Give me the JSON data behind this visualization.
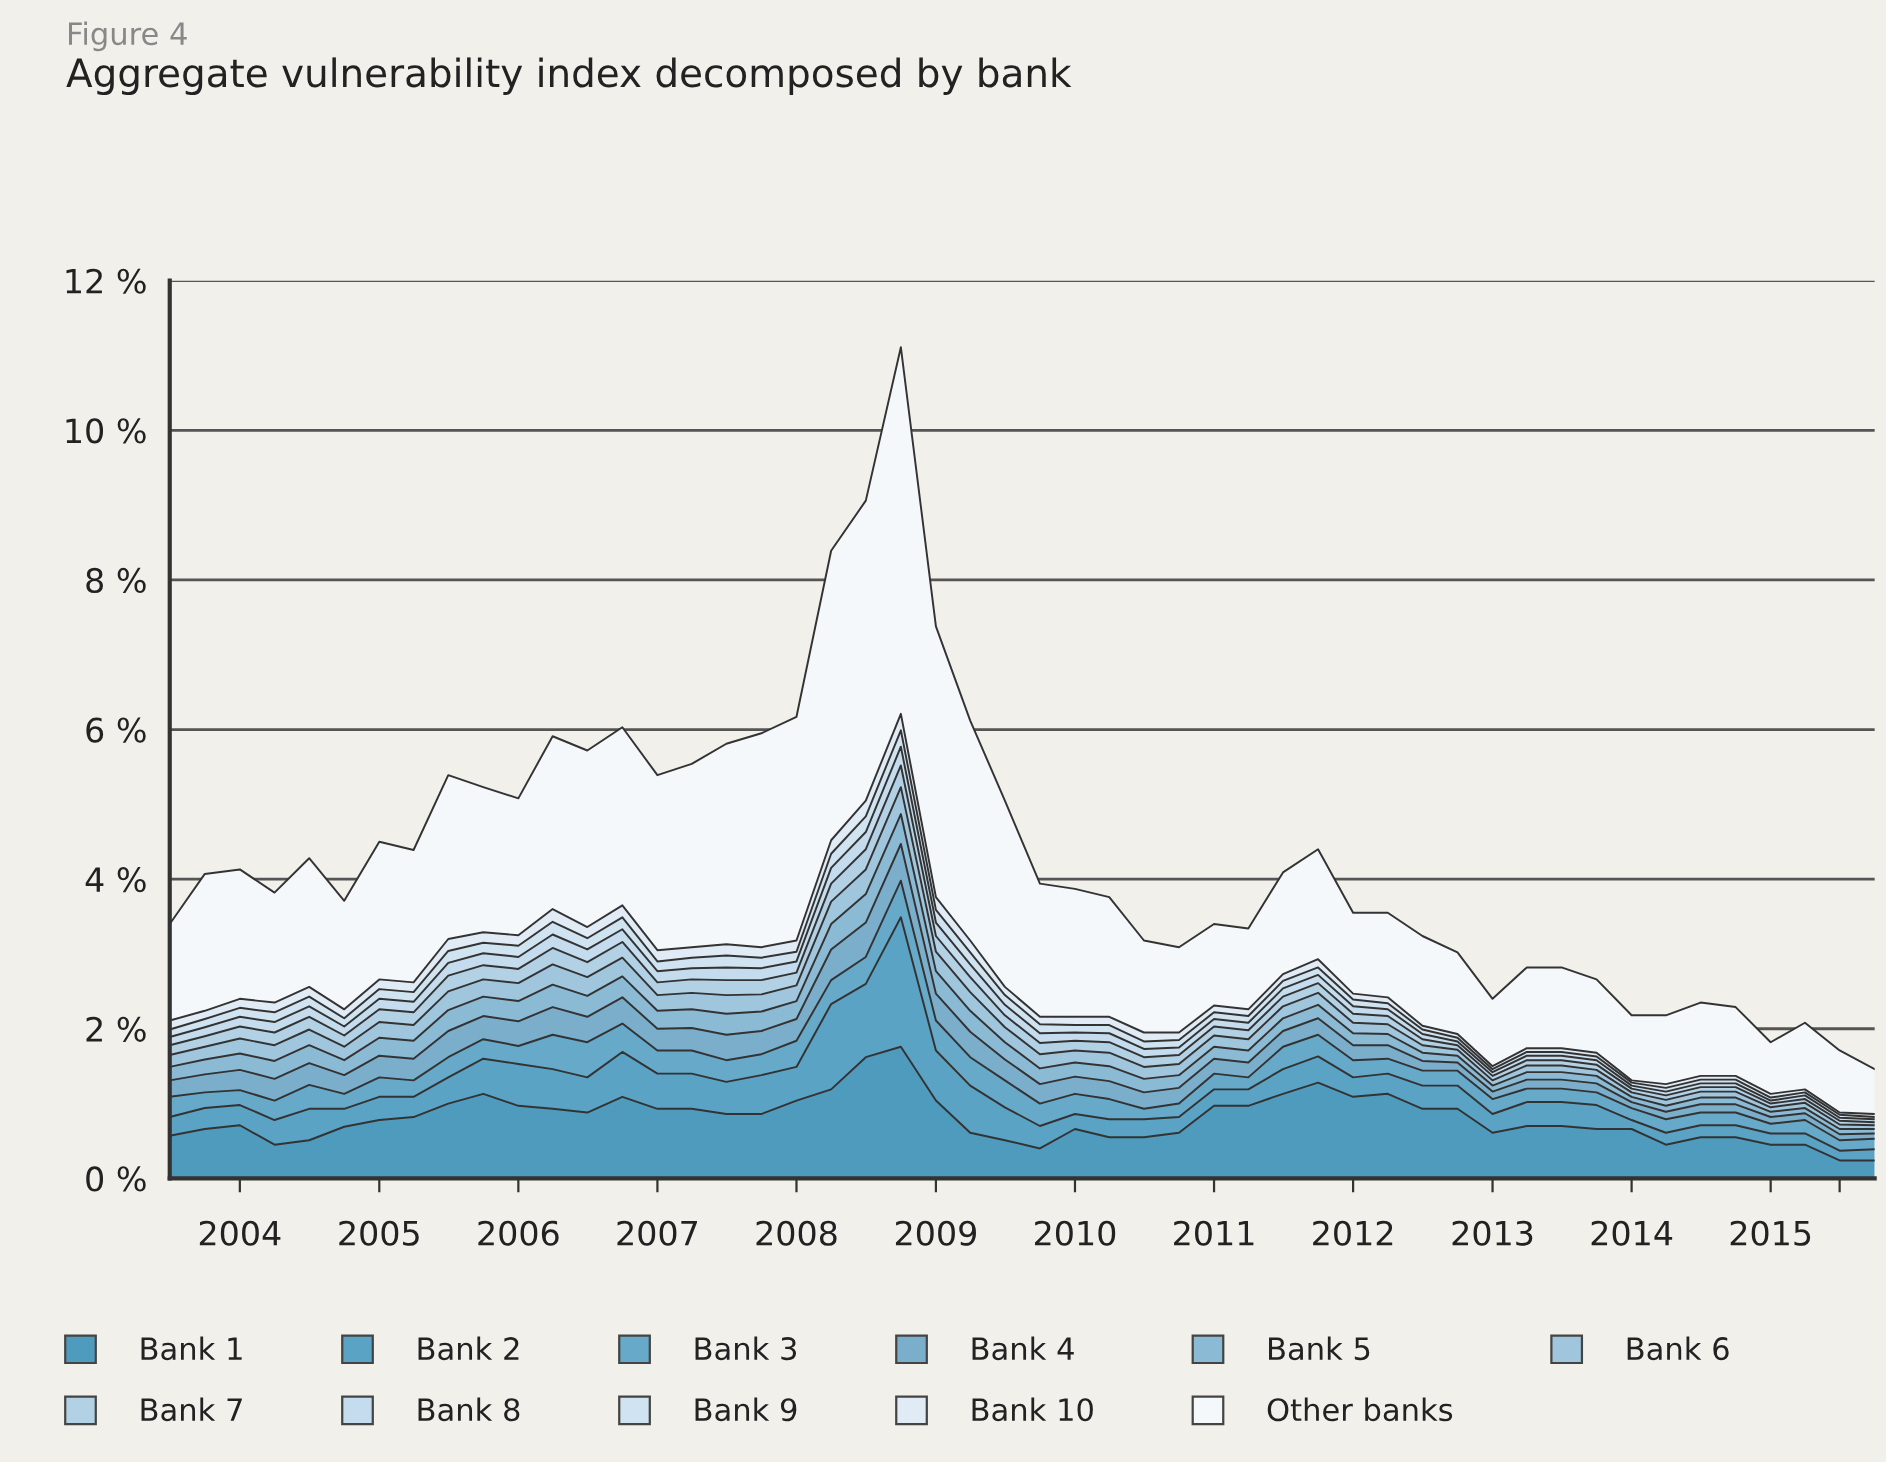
{
  "chart_data": {
    "type": "area",
    "stacked": true,
    "title": "Aggregate vulnerability index decomposed by bank",
    "annotations": [
      "Figure 4"
    ],
    "x": [
      "2003-07-01",
      "2003-10-01",
      "2004-01-01",
      "2004-04-01",
      "2004-07-01",
      "2004-10-01",
      "2005-01-01",
      "2005-04-01",
      "2005-07-01",
      "2005-10-01",
      "2006-01-01",
      "2006-04-01",
      "2006-07-01",
      "2006-10-01",
      "2007-01-01",
      "2007-04-01",
      "2007-07-01",
      "2007-10-01",
      "2008-01-01",
      "2008-04-01",
      "2008-07-01",
      "2008-10-01",
      "2009-01-01",
      "2009-04-01",
      "2009-07-01",
      "2009-10-01",
      "2010-01-01",
      "2010-04-01",
      "2010-07-01",
      "2010-10-01",
      "2011-01-01",
      "2011-04-01",
      "2011-07-01",
      "2011-10-01",
      "2012-01-01",
      "2012-04-01",
      "2012-07-01",
      "2012-10-01",
      "2013-01-01",
      "2013-04-01",
      "2013-07-01",
      "2013-10-01",
      "2014-01-01",
      "2014-04-01",
      "2014-07-01",
      "2014-10-01",
      "2015-01-01",
      "2015-04-01",
      "2015-07-01",
      "2015-10-01"
    ],
    "series": [
      {
        "name": "Bank 1",
        "color": "#4f9bbd",
        "values": [
          0.57,
          0.66,
          0.71,
          0.45,
          0.51,
          0.69,
          0.78,
          0.82,
          1.0,
          1.13,
          0.97,
          0.93,
          0.88,
          1.09,
          0.93,
          0.93,
          0.86,
          0.86,
          1.04,
          1.19,
          1.62,
          1.76,
          1.04,
          0.61,
          0.51,
          0.4,
          0.66,
          0.55,
          0.55,
          0.61,
          0.97,
          0.97,
          1.13,
          1.28,
          1.09,
          1.13,
          0.93,
          0.93,
          0.61,
          0.7,
          0.7,
          0.66,
          0.66,
          0.45,
          0.55,
          0.55,
          0.45,
          0.45,
          0.24,
          0.24
        ]
      },
      {
        "name": "Bank 2",
        "color": "#5aa3c4",
        "values": [
          0.25,
          0.28,
          0.27,
          0.33,
          0.42,
          0.24,
          0.31,
          0.27,
          0.35,
          0.47,
          0.56,
          0.53,
          0.47,
          0.6,
          0.47,
          0.47,
          0.43,
          0.52,
          0.45,
          1.14,
          0.98,
          1.73,
          0.67,
          0.63,
          0.44,
          0.3,
          0.2,
          0.24,
          0.24,
          0.21,
          0.22,
          0.22,
          0.33,
          0.35,
          0.26,
          0.27,
          0.31,
          0.31,
          0.25,
          0.32,
          0.32,
          0.32,
          0.12,
          0.16,
          0.16,
          0.16,
          0.15,
          0.15,
          0.13,
          0.15
        ]
      },
      {
        "name": "Bank 3",
        "color": "#66a9c9",
        "values": [
          0.27,
          0.21,
          0.2,
          0.26,
          0.32,
          0.2,
          0.26,
          0.22,
          0.27,
          0.26,
          0.24,
          0.46,
          0.47,
          0.38,
          0.31,
          0.31,
          0.29,
          0.28,
          0.35,
          0.32,
          0.36,
          0.49,
          0.4,
          0.38,
          0.36,
          0.3,
          0.27,
          0.27,
          0.14,
          0.18,
          0.21,
          0.16,
          0.3,
          0.29,
          0.23,
          0.2,
          0.2,
          0.2,
          0.2,
          0.18,
          0.18,
          0.17,
          0.16,
          0.18,
          0.17,
          0.17,
          0.13,
          0.18,
          0.14,
          0.14
        ]
      },
      {
        "name": "Bank 4",
        "color": "#7aaecb",
        "values": [
          0.22,
          0.24,
          0.27,
          0.29,
          0.29,
          0.25,
          0.29,
          0.29,
          0.35,
          0.31,
          0.33,
          0.37,
          0.34,
          0.35,
          0.29,
          0.3,
          0.34,
          0.31,
          0.29,
          0.41,
          0.46,
          0.49,
          0.36,
          0.34,
          0.28,
          0.26,
          0.23,
          0.24,
          0.22,
          0.21,
          0.2,
          0.2,
          0.21,
          0.22,
          0.2,
          0.18,
          0.13,
          0.11,
          0.1,
          0.12,
          0.12,
          0.12,
          0.08,
          0.1,
          0.11,
          0.11,
          0.09,
          0.09,
          0.08,
          0.07
        ]
      },
      {
        "name": "Bank 5",
        "color": "#8bbad5",
        "values": [
          0.18,
          0.2,
          0.22,
          0.24,
          0.24,
          0.2,
          0.24,
          0.24,
          0.28,
          0.26,
          0.27,
          0.3,
          0.28,
          0.28,
          0.24,
          0.25,
          0.28,
          0.26,
          0.24,
          0.34,
          0.38,
          0.4,
          0.3,
          0.28,
          0.23,
          0.21,
          0.19,
          0.2,
          0.18,
          0.17,
          0.16,
          0.16,
          0.17,
          0.18,
          0.16,
          0.15,
          0.11,
          0.09,
          0.08,
          0.1,
          0.1,
          0.1,
          0.07,
          0.08,
          0.09,
          0.09,
          0.07,
          0.07,
          0.07,
          0.06
        ]
      },
      {
        "name": "Bank 6",
        "color": "#a0c6de",
        "values": [
          0.16,
          0.17,
          0.2,
          0.21,
          0.21,
          0.18,
          0.21,
          0.21,
          0.25,
          0.23,
          0.24,
          0.27,
          0.25,
          0.25,
          0.21,
          0.22,
          0.25,
          0.23,
          0.21,
          0.3,
          0.33,
          0.36,
          0.26,
          0.25,
          0.2,
          0.19,
          0.16,
          0.18,
          0.16,
          0.15,
          0.15,
          0.15,
          0.16,
          0.16,
          0.14,
          0.13,
          0.1,
          0.08,
          0.07,
          0.09,
          0.09,
          0.08,
          0.06,
          0.08,
          0.08,
          0.08,
          0.06,
          0.07,
          0.06,
          0.05
        ]
      },
      {
        "name": "Bank 7",
        "color": "#b2d1e5",
        "values": [
          0.13,
          0.14,
          0.16,
          0.17,
          0.17,
          0.15,
          0.17,
          0.17,
          0.21,
          0.19,
          0.19,
          0.22,
          0.2,
          0.21,
          0.17,
          0.18,
          0.2,
          0.19,
          0.17,
          0.24,
          0.27,
          0.29,
          0.21,
          0.2,
          0.16,
          0.15,
          0.13,
          0.14,
          0.13,
          0.12,
          0.12,
          0.12,
          0.13,
          0.13,
          0.12,
          0.11,
          0.08,
          0.06,
          0.06,
          0.07,
          0.07,
          0.07,
          0.05,
          0.06,
          0.06,
          0.06,
          0.05,
          0.05,
          0.05,
          0.04
        ]
      },
      {
        "name": "Bank 8",
        "color": "#c4dced",
        "values": [
          0.11,
          0.12,
          0.13,
          0.14,
          0.14,
          0.12,
          0.14,
          0.14,
          0.17,
          0.16,
          0.16,
          0.18,
          0.17,
          0.17,
          0.15,
          0.15,
          0.17,
          0.16,
          0.15,
          0.21,
          0.23,
          0.25,
          0.18,
          0.17,
          0.14,
          0.13,
          0.11,
          0.12,
          0.11,
          0.1,
          0.1,
          0.1,
          0.11,
          0.11,
          0.1,
          0.09,
          0.07,
          0.05,
          0.05,
          0.06,
          0.06,
          0.06,
          0.04,
          0.05,
          0.05,
          0.05,
          0.04,
          0.05,
          0.04,
          0.04
        ]
      },
      {
        "name": "Bank 9",
        "color": "#d0e3f0",
        "values": [
          0.1,
          0.11,
          0.12,
          0.13,
          0.13,
          0.11,
          0.13,
          0.13,
          0.16,
          0.14,
          0.15,
          0.17,
          0.15,
          0.16,
          0.13,
          0.14,
          0.16,
          0.14,
          0.13,
          0.19,
          0.21,
          0.22,
          0.17,
          0.16,
          0.13,
          0.12,
          0.1,
          0.11,
          0.1,
          0.1,
          0.09,
          0.09,
          0.1,
          0.1,
          0.09,
          0.08,
          0.06,
          0.05,
          0.04,
          0.05,
          0.05,
          0.05,
          0.04,
          0.05,
          0.05,
          0.05,
          0.04,
          0.04,
          0.04,
          0.03
        ]
      },
      {
        "name": "Bank 10",
        "color": "#e0ebf5",
        "values": [
          0.12,
          0.11,
          0.12,
          0.13,
          0.13,
          0.12,
          0.13,
          0.13,
          0.16,
          0.14,
          0.14,
          0.17,
          0.15,
          0.16,
          0.15,
          0.14,
          0.15,
          0.14,
          0.15,
          0.18,
          0.21,
          0.22,
          0.17,
          0.16,
          0.11,
          0.1,
          0.11,
          0.11,
          0.12,
          0.1,
          0.09,
          0.09,
          0.09,
          0.11,
          0.08,
          0.08,
          0.05,
          0.05,
          0.04,
          0.05,
          0.05,
          0.05,
          0.03,
          0.05,
          0.05,
          0.05,
          0.05,
          0.04,
          0.03,
          0.04
        ]
      },
      {
        "name": "Other banks",
        "color": "#f5f8fb",
        "values": [
          1.29,
          1.83,
          1.73,
          1.47,
          1.72,
          1.45,
          1.84,
          1.77,
          2.19,
          1.94,
          1.83,
          2.31,
          2.36,
          2.38,
          2.34,
          2.45,
          2.68,
          2.86,
          2.99,
          3.87,
          4.01,
          4.9,
          3.62,
          2.94,
          2.49,
          1.78,
          1.71,
          1.6,
          1.23,
          1.14,
          1.09,
          1.08,
          1.36,
          1.47,
          1.08,
          1.13,
          1.2,
          1.09,
          0.9,
          1.08,
          1.08,
          0.98,
          0.87,
          0.92,
          0.98,
          0.92,
          0.69,
          0.89,
          0.83,
          0.6
        ]
      }
    ],
    "xlim": [
      "2003-07-01",
      "2015-10-01"
    ],
    "xticks": [
      {
        "value": "2004-01-01",
        "label": "2004"
      },
      {
        "value": "2005-01-01",
        "label": "2005"
      },
      {
        "value": "2006-01-01",
        "label": "2006"
      },
      {
        "value": "2007-01-01",
        "label": "2007"
      },
      {
        "value": "2008-01-01",
        "label": "2008"
      },
      {
        "value": "2009-01-01",
        "label": "2009"
      },
      {
        "value": "2010-01-01",
        "label": "2010"
      },
      {
        "value": "2011-01-01",
        "label": "2011"
      },
      {
        "value": "2012-01-01",
        "label": "2012"
      },
      {
        "value": "2013-01-01",
        "label": "2013"
      },
      {
        "value": "2014-01-01",
        "label": "2014"
      },
      {
        "value": "2015-01-01",
        "label": "2015"
      },
      {
        "value": "2015-07-01",
        "label": null
      }
    ],
    "ylim": [
      0,
      12
    ],
    "yticks": [
      {
        "value": 0,
        "label": "0 %"
      },
      {
        "value": 2,
        "label": "2 %"
      },
      {
        "value": 4,
        "label": "4 %"
      },
      {
        "value": 6,
        "label": "6 %"
      },
      {
        "value": 8,
        "label": "8 %"
      },
      {
        "value": 10,
        "label": "10 %"
      },
      {
        "value": 12,
        "label": "12 %"
      }
    ],
    "grid": "y",
    "legend": "bottom"
  }
}
